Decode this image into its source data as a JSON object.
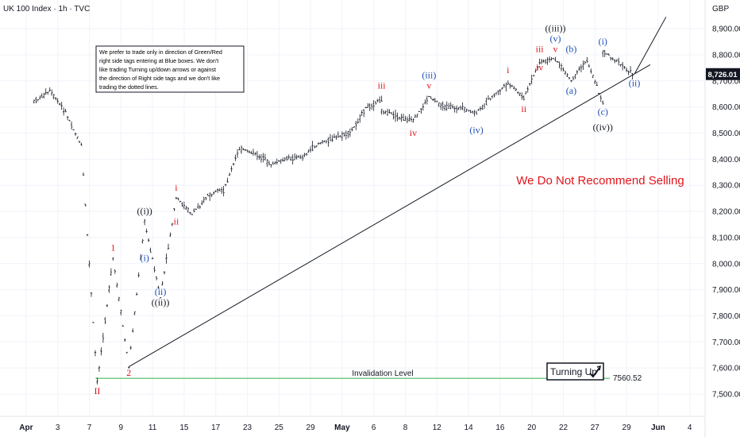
{
  "header": {
    "title": "UK 100 Index · 1h · TVC",
    "currency": "GBP"
  },
  "note": {
    "lines": [
      "We prefer to trade only in direction of Green/Red",
      "right side tags entering at Blue boxes. We don't",
      "like trading Turning up/down arrows or against",
      "the direction of Right side tags and we don't like",
      "trading the dotted lines."
    ]
  },
  "recommendation": {
    "text": "We Do Not Recommend Selling",
    "color": "#e0151b"
  },
  "turning": {
    "text": "Turning Up"
  },
  "invalidation": {
    "label": "Invalidation Level",
    "value": "7560.52",
    "color": "#29b04b"
  },
  "price_tag": {
    "value": "8,726.01"
  },
  "colors": {
    "red": "#e0151b",
    "blue": "#1f4fb4",
    "black": "#131722",
    "candle": "#131722"
  },
  "chart_data": {
    "type": "line",
    "y_axis": {
      "ticks": [
        7500,
        7600,
        7700,
        7800,
        7900,
        8000,
        8100,
        8200,
        8300,
        8400,
        8500,
        8600,
        8700,
        8800,
        8900
      ],
      "tick_labels": [
        "7,500.00",
        "7,600.00",
        "7,700.00",
        "7,800.00",
        "7,900.00",
        "8,000.00",
        "8,100.00",
        "8,200.00",
        "8,300.00",
        "8,400.00",
        "8,500.00",
        "8,600.00",
        "8,700.00",
        "8,800.00",
        "8,900.00"
      ],
      "range": [
        7440,
        8945
      ]
    },
    "x_axis": {
      "tick_labels": [
        "Apr",
        "3",
        "7",
        "9",
        "11",
        "15",
        "17",
        "23",
        "25",
        "29",
        "May",
        "6",
        "8",
        "12",
        "14",
        "16",
        "20",
        "22",
        "27",
        "29",
        "Jun",
        "4"
      ],
      "bold_labels": [
        "Apr",
        "May",
        "Jun"
      ]
    },
    "price_path": [
      {
        "date": "2025-04-01",
        "price": 8620
      },
      {
        "date": "2025-04-02",
        "price": 8660
      },
      {
        "date": "2025-04-03",
        "price": 8580
      },
      {
        "date": "2025-04-04",
        "price": 8450
      },
      {
        "date": "2025-04-07",
        "price": 7545
      },
      {
        "date": "2025-04-08",
        "price": 8020
      },
      {
        "date": "2025-04-09",
        "price": 7605
      },
      {
        "date": "2025-04-10",
        "price": 8160
      },
      {
        "date": "2025-04-11",
        "price": 7870
      },
      {
        "date": "2025-04-14",
        "price": 8250
      },
      {
        "date": "2025-04-15",
        "price": 8190
      },
      {
        "date": "2025-04-16",
        "price": 8260
      },
      {
        "date": "2025-04-17",
        "price": 8280
      },
      {
        "date": "2025-04-22",
        "price": 8440
      },
      {
        "date": "2025-04-23",
        "price": 8420
      },
      {
        "date": "2025-04-24",
        "price": 8380
      },
      {
        "date": "2025-04-25",
        "price": 8400
      },
      {
        "date": "2025-04-28",
        "price": 8410
      },
      {
        "date": "2025-04-29",
        "price": 8460
      },
      {
        "date": "2025-05-01",
        "price": 8500
      },
      {
        "date": "2025-05-02",
        "price": 8595
      },
      {
        "date": "2025-05-05",
        "price": 8630
      },
      {
        "date": "2025-05-06",
        "price": 8585
      },
      {
        "date": "2025-05-07",
        "price": 8560
      },
      {
        "date": "2025-05-08",
        "price": 8545
      },
      {
        "date": "2025-05-09",
        "price": 8640
      },
      {
        "date": "2025-05-12",
        "price": 8600
      },
      {
        "date": "2025-05-13",
        "price": 8595
      },
      {
        "date": "2025-05-14",
        "price": 8575
      },
      {
        "date": "2025-05-15",
        "price": 8640
      },
      {
        "date": "2025-05-16",
        "price": 8690
      },
      {
        "date": "2025-05-19",
        "price": 8635
      },
      {
        "date": "2025-05-20",
        "price": 8770
      },
      {
        "date": "2025-05-21",
        "price": 8785
      },
      {
        "date": "2025-05-22",
        "price": 8700
      },
      {
        "date": "2025-05-23",
        "price": 8780
      },
      {
        "date": "2025-05-24",
        "price": 8615
      },
      {
        "date": "2025-05-27",
        "price": 8815
      },
      {
        "date": "2025-05-28",
        "price": 8770
      },
      {
        "date": "2025-05-29",
        "price": 8720
      }
    ],
    "trendline": [
      {
        "date": "2025-04-09",
        "price": 7605
      },
      {
        "date": "2025-05-30",
        "price": 8762
      }
    ],
    "projection": [
      {
        "date": "2025-05-29",
        "price": 8726
      },
      {
        "date": "2025-05-31",
        "price": 8945
      }
    ],
    "labels": [
      {
        "text": "II",
        "date": "2025-04-07",
        "price": 7500,
        "color": "red",
        "size": "large"
      },
      {
        "text": "1",
        "date": "2025-04-08",
        "price": 8050,
        "color": "red"
      },
      {
        "text": "2",
        "date": "2025-04-09",
        "price": 7570,
        "color": "red"
      },
      {
        "text": "((i))",
        "date": "2025-04-10",
        "price": 8190,
        "color": "black"
      },
      {
        "text": "(i)",
        "date": "2025-04-10",
        "price": 8010,
        "color": "blue"
      },
      {
        "text": "(ii)",
        "date": "2025-04-11",
        "price": 7880,
        "color": "blue"
      },
      {
        "text": "((ii))",
        "date": "2025-04-11",
        "price": 7840,
        "color": "black"
      },
      {
        "text": "i",
        "date": "2025-04-14",
        "price": 8280,
        "color": "red"
      },
      {
        "text": "ii",
        "date": "2025-04-14",
        "price": 8150,
        "color": "red"
      },
      {
        "text": "iii",
        "date": "2025-05-05",
        "price": 8670,
        "color": "red"
      },
      {
        "text": "iv",
        "date": "2025-05-08",
        "price": 8490,
        "color": "red"
      },
      {
        "text": "(iii)",
        "date": "2025-05-09",
        "price": 8710,
        "color": "blue"
      },
      {
        "text": "v",
        "date": "2025-05-09",
        "price": 8670,
        "color": "red"
      },
      {
        "text": "(iv)",
        "date": "2025-05-14",
        "price": 8500,
        "color": "blue"
      },
      {
        "text": "i",
        "date": "2025-05-16",
        "price": 8730,
        "color": "red"
      },
      {
        "text": "ii",
        "date": "2025-05-19",
        "price": 8580,
        "color": "red"
      },
      {
        "text": "iii",
        "date": "2025-05-20",
        "price": 8810,
        "color": "red"
      },
      {
        "text": "iv",
        "date": "2025-05-20",
        "price": 8740,
        "color": "red"
      },
      {
        "text": "v",
        "date": "2025-05-21",
        "price": 8810,
        "color": "red"
      },
      {
        "text": "(v)",
        "date": "2025-05-21",
        "price": 8850,
        "color": "blue"
      },
      {
        "text": "((iii))",
        "date": "2025-05-21",
        "price": 8890,
        "color": "black"
      },
      {
        "text": "(b)",
        "date": "2025-05-22",
        "price": 8810,
        "color": "blue"
      },
      {
        "text": "(a)",
        "date": "2025-05-22",
        "price": 8650,
        "color": "blue"
      },
      {
        "text": "(c)",
        "date": "2025-05-24",
        "price": 8570,
        "color": "blue"
      },
      {
        "text": "((iv))",
        "date": "2025-05-24",
        "price": 8510,
        "color": "black"
      },
      {
        "text": "(i)",
        "date": "2025-05-26",
        "price": 8840,
        "color": "blue"
      },
      {
        "text": "(ii)",
        "date": "2025-05-29",
        "price": 8680,
        "color": "blue"
      }
    ]
  }
}
